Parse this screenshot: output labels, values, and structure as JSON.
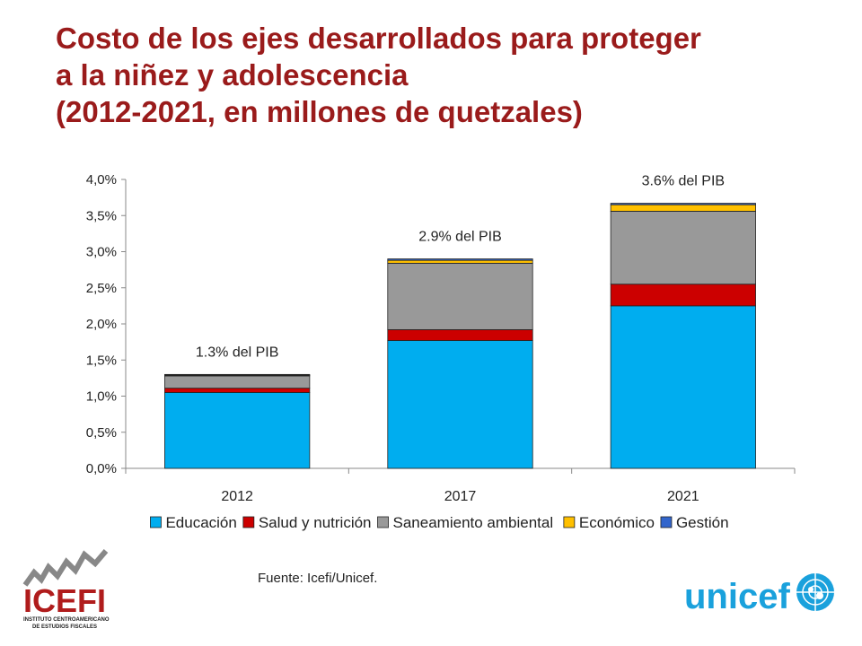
{
  "title_lines": [
    "Costo de los ejes desarrollados para proteger",
    "a la niñez y adolescencia",
    "(2012-2021, en millones de quetzales)"
  ],
  "source": "Fuente: Icefi/Unicef.",
  "logos": {
    "icefi": {
      "name": "ICEFI",
      "subtitle_1": "INSTITUTO CENTROAMERICANO",
      "subtitle_2": "DE ESTUDIOS FISCALES"
    },
    "unicef": {
      "name": "unicef"
    }
  },
  "chart_data": {
    "type": "bar",
    "stacked": true,
    "categories": [
      "2012",
      "2017",
      "2021"
    ],
    "series": [
      {
        "name": "Educación",
        "color": "#00adef",
        "values": [
          1.05,
          1.77,
          2.25
        ]
      },
      {
        "name": "Salud y nutrición",
        "color": "#cc0000",
        "values": [
          0.06,
          0.15,
          0.3
        ]
      },
      {
        "name": "Saneamiento  ambiental",
        "color": "#999999",
        "values": [
          0.17,
          0.92,
          1.01
        ]
      },
      {
        "name": "Económico",
        "color": "#ffc000",
        "values": [
          0.01,
          0.04,
          0.09
        ]
      },
      {
        "name": "Gestión",
        "color": "#3366cc",
        "values": [
          0.01,
          0.02,
          0.02
        ]
      }
    ],
    "annotations": [
      "1.3% del PIB",
      "2.9% del PIB",
      "3.6% del PIB"
    ],
    "yticks": [
      "0,0%",
      "0,5%",
      "1,0%",
      "1,5%",
      "2,0%",
      "2,5%",
      "3,0%",
      "3,5%",
      "4,0%"
    ],
    "ylim": [
      0,
      4
    ],
    "grid": false,
    "legend_position": "bottom",
    "xlabel": "",
    "ylabel": ""
  }
}
